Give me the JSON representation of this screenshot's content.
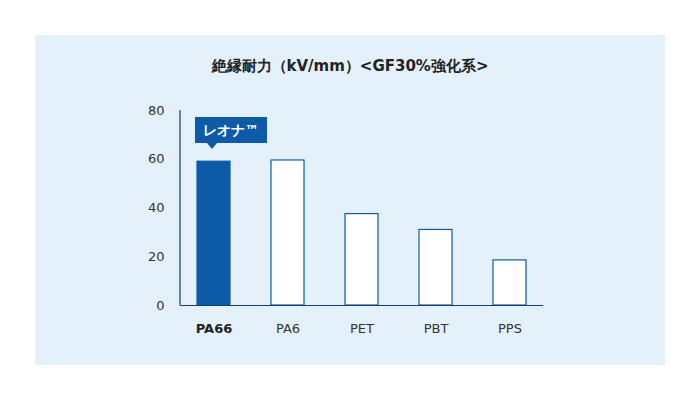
{
  "chart_data": {
    "type": "bar",
    "title": "絶縁耐力（kV/mm）<GF30%強化系>",
    "categories": [
      "PA66",
      "PA6",
      "PET",
      "PBT",
      "PPS"
    ],
    "values": [
      59,
      59.5,
      37.5,
      31,
      18.5
    ],
    "colors": [
      "#0d5aa7",
      "#ffffff",
      "#ffffff",
      "#ffffff",
      "#ffffff"
    ],
    "annotations": [
      {
        "text": "レオナ™",
        "category": "PA66"
      }
    ],
    "ylim": [
      0,
      80
    ],
    "yticks": [
      0,
      20,
      40,
      60,
      80
    ],
    "grid": false
  }
}
